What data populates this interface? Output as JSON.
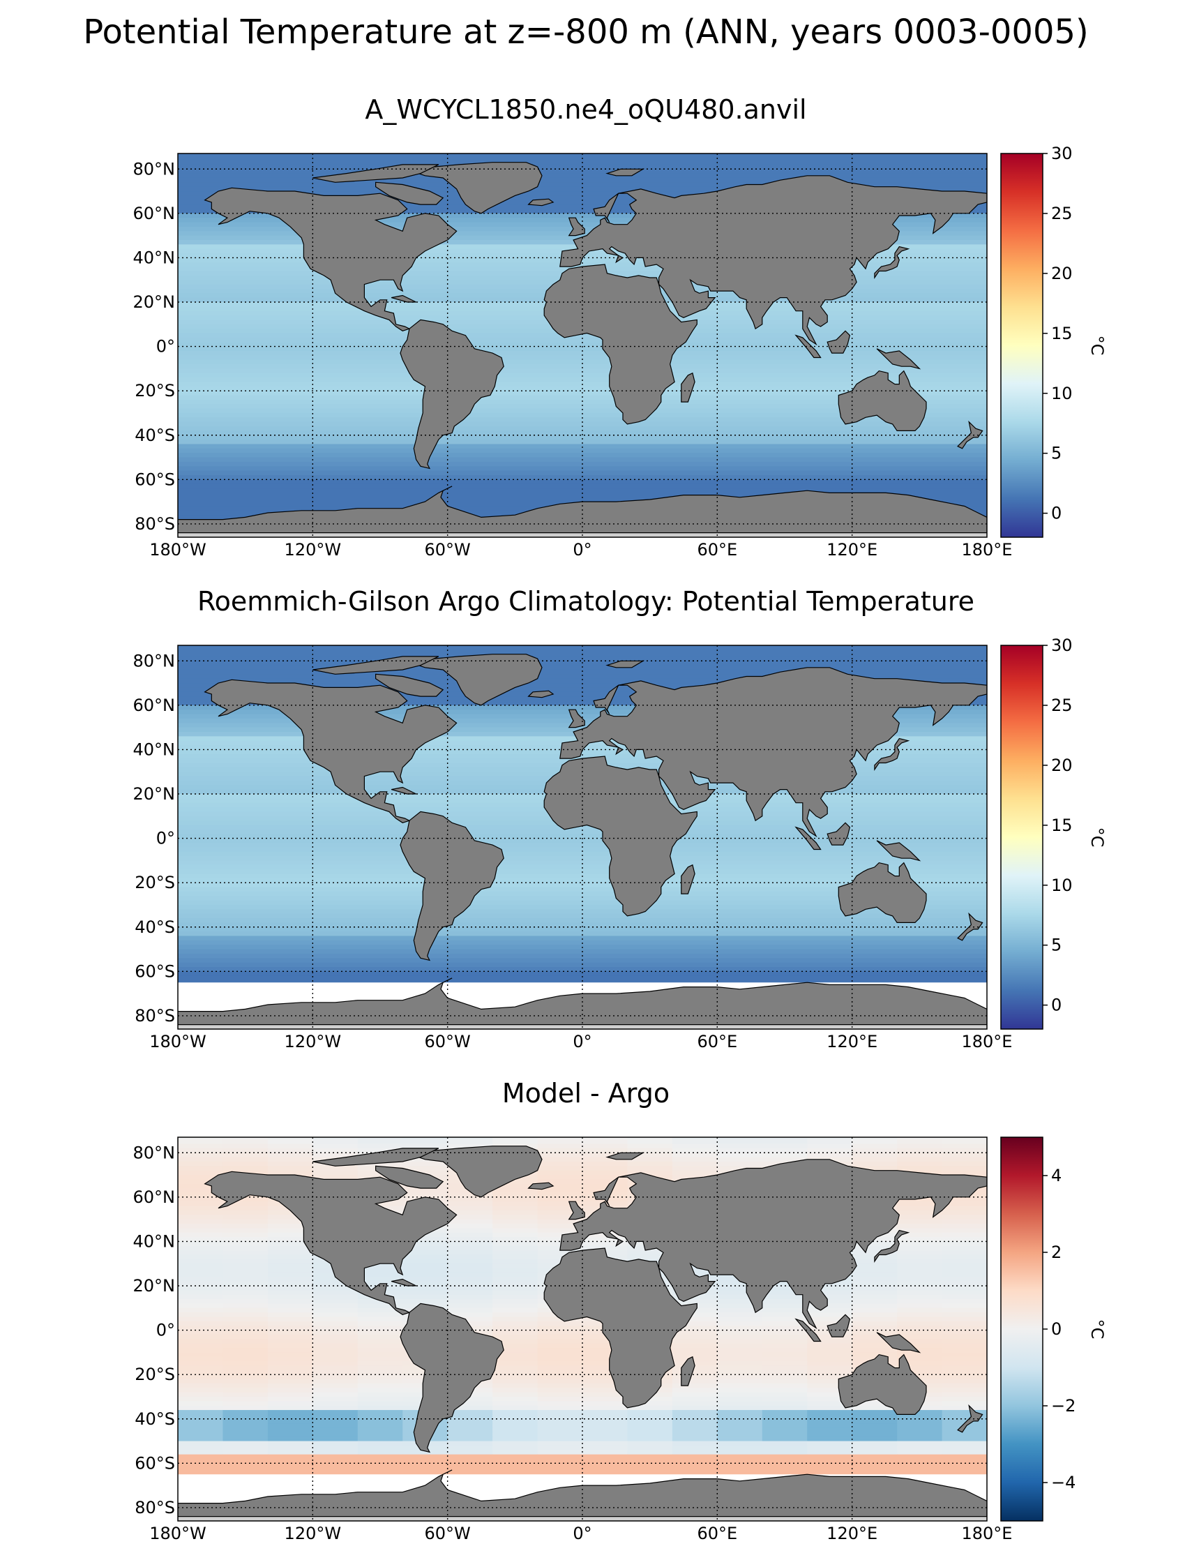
{
  "figure_title": "Potential Temperature at z=-800 m (ANN, years 0003-0005)",
  "colors": {
    "land": "#7f7f7f",
    "ice_shelf": "#d0d0d0",
    "no_data": "#ffffff",
    "colormap_temperature": [
      "#313695",
      "#4575b4",
      "#74add1",
      "#abd9e9",
      "#e0f3f8",
      "#ffffbf",
      "#fee090",
      "#fdae61",
      "#f46d43",
      "#d73027",
      "#a50026"
    ],
    "colormap_difference": [
      "#053061",
      "#2166ac",
      "#4393c3",
      "#92c5de",
      "#d1e5f0",
      "#f0f0f0",
      "#fddbc7",
      "#f4a582",
      "#d6604d",
      "#b2182b",
      "#67001f"
    ]
  },
  "lon_ticks": [
    "180°W",
    "120°W",
    "60°W",
    "0°",
    "60°E",
    "120°E",
    "180°E"
  ],
  "lat_ticks": [
    "80°N",
    "60°N",
    "40°N",
    "20°N",
    "0°",
    "20°S",
    "40°S",
    "60°S",
    "80°S"
  ],
  "panels": [
    {
      "title": "A_WCYCL1850.ne4_oQU480.anvil",
      "colorbar": {
        "label": "°C",
        "ticks": [
          "0",
          "5",
          "10",
          "15",
          "20",
          "25",
          "30"
        ],
        "range": [
          -2,
          30
        ],
        "colormap": "RdYlBu_r"
      },
      "data_lat_range": [
        -80,
        90
      ],
      "fill_description_colors": [
        "#4575b4",
        "#74add1",
        "#abd9e9"
      ]
    },
    {
      "title": "Roemmich-Gilson Argo Climatology: Potential Temperature",
      "colorbar": {
        "label": "°C",
        "ticks": [
          "0",
          "5",
          "10",
          "15",
          "20",
          "25",
          "30"
        ],
        "range": [
          -2,
          30
        ],
        "colormap": "RdYlBu_r"
      },
      "data_lat_range": [
        -65,
        90
      ]
    },
    {
      "title": "Model - Argo",
      "colorbar": {
        "label": "°C",
        "ticks": [
          "−4",
          "−2",
          "0",
          "2",
          "4"
        ],
        "range": [
          -5,
          5
        ],
        "colormap": "RdBu_r"
      },
      "data_lat_range": [
        -65,
        90
      ]
    }
  ]
}
